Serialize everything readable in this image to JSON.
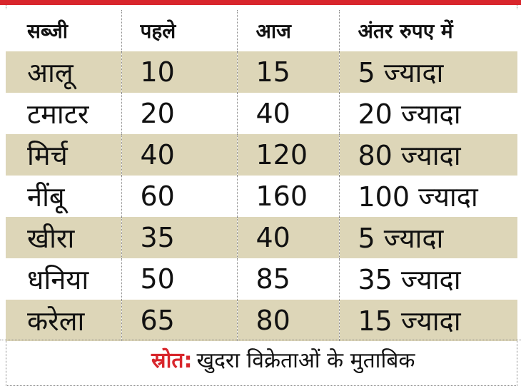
{
  "table": {
    "headers": [
      "सब्जी",
      "पहले",
      "आज",
      "अंतर रुपए में"
    ],
    "rows": [
      [
        "आलू",
        "10",
        "15",
        "5 ज्यादा"
      ],
      [
        "टमाटर",
        "20",
        "40",
        "20 ज्यादा"
      ],
      [
        "मिर्च",
        "40",
        "120",
        "80 ज्यादा"
      ],
      [
        "नींबू",
        "60",
        "160",
        "100 ज्यादा"
      ],
      [
        "खीरा",
        "35",
        "40",
        "5 ज्यादा"
      ],
      [
        "धनिया",
        "50",
        "85",
        "35 ज्यादा"
      ],
      [
        "करेला",
        "65",
        "80",
        "15 ज्यादा"
      ]
    ]
  },
  "source": {
    "label": "स्रोत:",
    "text": "खुदरा विक्रेताओं के मुताबिक"
  },
  "colors": {
    "accent": "#d8262c",
    "row_shade": "#ddd6b8"
  }
}
